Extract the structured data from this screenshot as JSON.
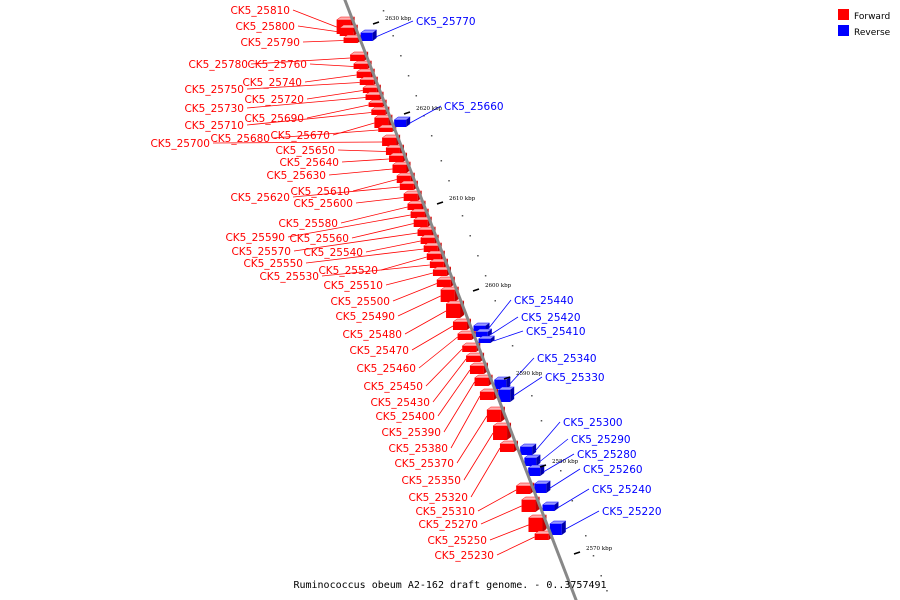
{
  "title": "Ruminococcus obeum A2-162 draft genome. - 0..3757491",
  "colors": {
    "forward": "#ff0000",
    "reverse": "#0000ff",
    "backbone": "#888888"
  },
  "legend": [
    {
      "label": "Forward",
      "color": "#ff0000"
    },
    {
      "label": "Reverse",
      "color": "#0000ff"
    }
  ],
  "axis_marks": [
    "2630 kbp",
    "2620 kbp",
    "2610 kbp",
    "2600 kbp",
    "2590 kbp",
    "2580 kbp",
    "2570 kbp"
  ],
  "forward_genes": [
    "CK5_25810",
    "CK5_25800",
    "CK5_25790",
    "CK5_25780",
    "CK5_25760",
    "CK5_25740",
    "CK5_25750",
    "CK5_25720",
    "CK5_25730",
    "CK5_25690",
    "CK5_25710",
    "CK5_25670",
    "CK5_25680",
    "CK5_25700",
    "CK5_25650",
    "CK5_25640",
    "CK5_25630",
    "CK5_25610",
    "CK5_25620",
    "CK5_25600",
    "CK5_25580",
    "CK5_25590",
    "CK5_25560",
    "CK5_25570",
    "CK5_25540",
    "CK5_25550",
    "CK5_25520",
    "CK5_25530",
    "CK5_25510",
    "CK5_25500",
    "CK5_25490",
    "CK5_25480",
    "CK5_25470",
    "CK5_25460",
    "CK5_25450",
    "CK5_25430",
    "CK5_25400",
    "CK5_25390",
    "CK5_25380",
    "CK5_25370",
    "CK5_25350",
    "CK5_25320",
    "CK5_25310",
    "CK5_25270",
    "CK5_25250",
    "CK5_25230"
  ],
  "reverse_genes": [
    "CK5_25770",
    "CK5_25660",
    "CK5_25440",
    "CK5_25420",
    "CK5_25410",
    "CK5_25340",
    "CK5_25330",
    "CK5_25300",
    "CK5_25290",
    "CK5_25280",
    "CK5_25260",
    "CK5_25240",
    "CK5_25220"
  ]
}
